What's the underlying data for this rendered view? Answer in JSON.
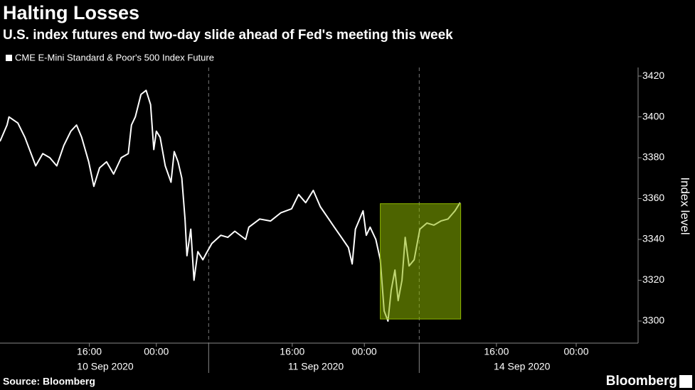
{
  "chart_data": {
    "type": "line",
    "title": "Halting Losses",
    "subtitle": "U.S. index futures end two-day slide ahead of Fed's meeting this week",
    "y_label": "Index level",
    "source": "Source: Bloomberg",
    "brand": "Bloomberg",
    "series": [
      {
        "name": "CME E-Mini Standard & Poor's 500 Index Future",
        "color": "#ffffff",
        "x": [
          0,
          1.1,
          1.4,
          2.8,
          3.9,
          5.6,
          6.7,
          7.8,
          8.9,
          10,
          11.1,
          12,
          12.8,
          13.9,
          14.7,
          15.6,
          16.7,
          17.8,
          19,
          20.1,
          20.6,
          21.2,
          22.1,
          22.9,
          23.6,
          24.1,
          24.5,
          25.1,
          25.9,
          26.8,
          27.3,
          27.9,
          28.5,
          29,
          29.3,
          29.9,
          30.4,
          31,
          31.8,
          32.3,
          33.2,
          34.6,
          35.7,
          36.8,
          38.5,
          39,
          40.7,
          42.4,
          44,
          45.7,
          46.8,
          47.9,
          49.1,
          50.2,
          51.3,
          52.4,
          53.5,
          54.6,
          55.2,
          55.7,
          56.9,
          57.4,
          58,
          58.9,
          59.6,
          60.2,
          60.8,
          61.3,
          61.9,
          62.4,
          63,
          63.5,
          64.1,
          64.9,
          65.8,
          66.9,
          68,
          69.1,
          70.2,
          71.3,
          72.1
        ],
        "values": [
          3388,
          3396,
          3400,
          3397,
          3390,
          3376,
          3382,
          3380,
          3376,
          3386,
          3393,
          3396,
          3390,
          3378,
          3366,
          3375,
          3378,
          3372,
          3380,
          3382,
          3396,
          3400,
          3411,
          3413,
          3406,
          3384,
          3393,
          3390,
          3376,
          3368,
          3383,
          3378,
          3370,
          3350,
          3332,
          3345,
          3320,
          3334,
          3330,
          3333,
          3338,
          3342,
          3341,
          3344,
          3340,
          3346,
          3350,
          3349,
          3353,
          3355,
          3362,
          3358,
          3364,
          3356,
          3351,
          3346,
          3341,
          3336,
          3328,
          3345,
          3354,
          3342,
          3346,
          3340,
          3330,
          3305,
          3300,
          3315,
          3325,
          3310,
          3320,
          3341,
          3327,
          3330,
          3345,
          3348,
          3347,
          3349,
          3350,
          3354,
          3358
        ]
      }
    ],
    "highlight": {
      "x": [
        59.6,
        72.2
      ],
      "y": [
        3301,
        3357.5
      ],
      "color": "#8db600"
    },
    "day_separators": [
      32.7,
      65.7
    ],
    "xlim": [
      0,
      100
    ],
    "xticks": [
      {
        "value": 14,
        "label": "16:00"
      },
      {
        "value": 24.5,
        "label": "00:00"
      },
      {
        "value": 45.8,
        "label": "16:00"
      },
      {
        "value": 57.1,
        "label": "00:00"
      },
      {
        "value": 77.8,
        "label": "16:00"
      },
      {
        "value": 90.3,
        "label": "00:00"
      }
    ],
    "date_labels": [
      {
        "value": 16.5,
        "label": "10 Sep 2020"
      },
      {
        "value": 49.5,
        "label": "11 Sep 2020"
      },
      {
        "value": 81.8,
        "label": "14 Sep 2020"
      }
    ],
    "ylim": [
      3289.2,
      3424.2
    ],
    "yticks": [
      3300,
      3320,
      3340,
      3360,
      3380,
      3400,
      3420
    ]
  }
}
